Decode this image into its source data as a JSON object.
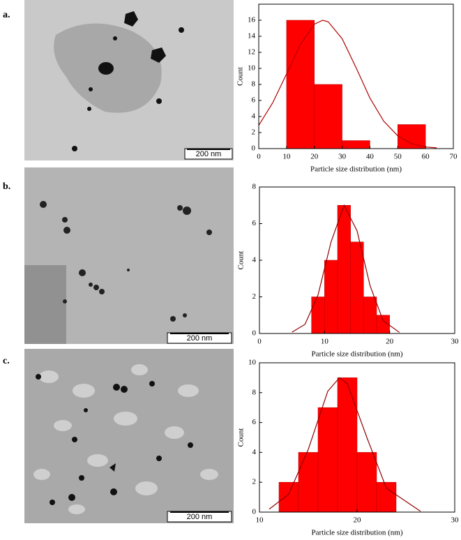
{
  "panels": [
    {
      "label": "a.",
      "scale_bar": "200 nm"
    },
    {
      "label": "b.",
      "scale_bar": "200 nm"
    },
    {
      "label": "c.",
      "scale_bar": "200 nm"
    }
  ],
  "chart_data": [
    {
      "type": "histogram",
      "xlabel": "Particle size distribution (nm)",
      "ylabel": "Count",
      "bins": [
        10,
        20,
        30,
        40,
        50,
        60
      ],
      "values": [
        16,
        8,
        1,
        0,
        3
      ],
      "color": "#ff0000",
      "fit": {
        "x": [
          0,
          5,
          10,
          15,
          20,
          23,
          25,
          30,
          35,
          40,
          45,
          50,
          55,
          60,
          64
        ],
        "values": [
          2.9,
          5.7,
          9.3,
          13.0,
          15.5,
          16,
          15.8,
          13.7,
          10.1,
          6.3,
          3.4,
          1.6,
          0.6,
          0.2,
          0.1
        ],
        "color": "#b00000"
      },
      "xlim": [
        0,
        70
      ],
      "xticks": [
        0,
        10,
        20,
        30,
        40,
        50,
        60,
        70
      ],
      "ylim": [
        0,
        18
      ],
      "yticks": [
        0,
        2,
        4,
        6,
        8,
        10,
        12,
        14,
        16
      ]
    },
    {
      "type": "histogram",
      "xlabel": "Particle size distribution (nm)",
      "ylabel": "Count",
      "bins": [
        8,
        10,
        12,
        14,
        16,
        18,
        20
      ],
      "values": [
        2,
        4,
        7,
        5,
        2,
        1
      ],
      "color": "#ff0000",
      "fit": {
        "x": [
          5,
          7,
          9,
          11,
          13,
          15,
          17,
          19,
          21.5
        ],
        "values": [
          0.07,
          0.5,
          2.1,
          5.0,
          7.0,
          5.6,
          2.6,
          0.7,
          0.06
        ],
        "color": "#900000"
      },
      "xlim": [
        0,
        30
      ],
      "xticks": [
        0,
        10,
        20,
        30
      ],
      "ylim": [
        0,
        8
      ],
      "yticks": [
        0,
        2,
        4,
        6,
        8
      ]
    },
    {
      "type": "histogram",
      "xlabel": "Particle size distribution (nm)",
      "ylabel": "Count",
      "bins": [
        12,
        14,
        16,
        18,
        20,
        22,
        24
      ],
      "values": [
        2,
        4,
        7,
        9,
        4,
        2
      ],
      "color": "#ff0000",
      "fit": {
        "x": [
          11,
          13,
          15,
          17,
          18.2,
          19,
          21,
          23,
          26.5
        ],
        "values": [
          0.2,
          1.2,
          4.2,
          8.1,
          9,
          8.6,
          5.0,
          1.6,
          0.05
        ],
        "color": "#900000"
      },
      "xlim": [
        10,
        30
      ],
      "xticks": [
        10,
        20,
        30
      ],
      "ylim": [
        0,
        10
      ],
      "yticks": [
        0,
        2,
        4,
        6,
        8,
        10
      ]
    }
  ]
}
